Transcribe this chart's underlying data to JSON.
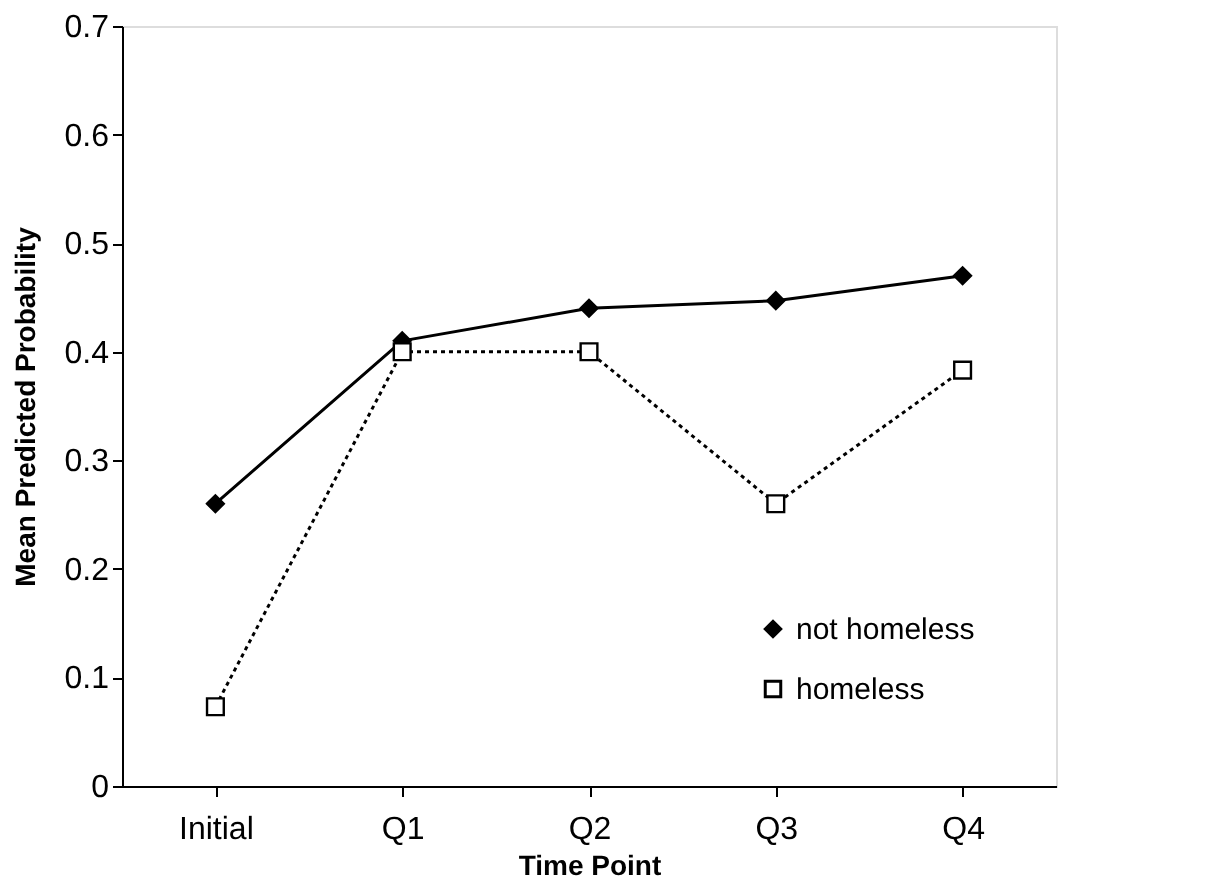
{
  "chart_data": {
    "type": "line",
    "xlabel": "Time Point",
    "ylabel": "Mean Predicted Probability",
    "categories": [
      "Initial",
      "Q1",
      "Q2",
      "Q3",
      "Q4"
    ],
    "series": [
      {
        "name": "not homeless",
        "color": "#000000",
        "marker": "diamond",
        "line_style": "solid",
        "values": [
          0.26,
          0.41,
          0.44,
          0.447,
          0.47
        ]
      },
      {
        "name": "homeless",
        "color": "#000000",
        "marker": "square",
        "line_style": "dotted",
        "values": [
          0.073,
          0.4,
          0.4,
          0.26,
          0.383
        ]
      }
    ],
    "ylim": [
      0,
      0.7
    ],
    "yticks": [
      0,
      0.1,
      0.2,
      0.3,
      0.4,
      0.5,
      0.6,
      0.7
    ],
    "grid": false,
    "legend": "bottom right"
  }
}
